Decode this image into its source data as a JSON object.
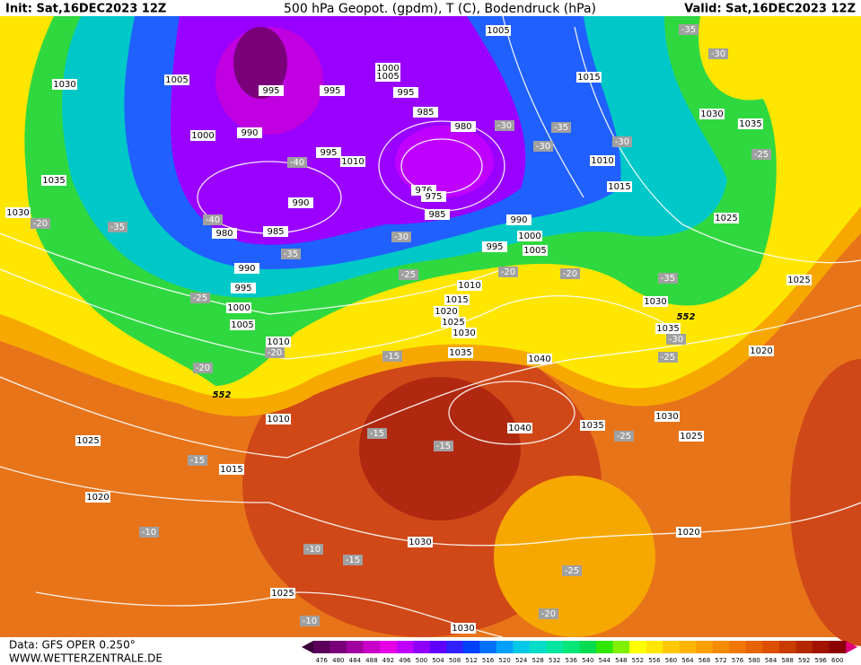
{
  "header": {
    "init": "Init: Sat,16DEC2023 12Z",
    "title": "500 hPa Geopot. (gpdm), T (C), Bodendruck (hPa)",
    "valid": "Valid: Sat,16DEC2023 12Z"
  },
  "footer": {
    "source": "Data: GFS OPER 0.250°",
    "site": "WWW.WETTERZENTRALE.DE"
  },
  "colorbar": {
    "values": [
      476,
      480,
      484,
      488,
      492,
      496,
      500,
      504,
      508,
      512,
      516,
      520,
      524,
      528,
      532,
      536,
      540,
      544,
      548,
      552,
      556,
      560,
      564,
      568,
      572,
      576,
      580,
      584,
      588,
      592,
      596,
      600
    ],
    "colors": [
      "#5a005a",
      "#7a007a",
      "#a000a0",
      "#c800c8",
      "#e600e6",
      "#c000ff",
      "#9000ff",
      "#6000ff",
      "#3020ff",
      "#0040ff",
      "#0070ff",
      "#00a0ff",
      "#00c8e6",
      "#00dcc8",
      "#00e6a0",
      "#00e678",
      "#00dc50",
      "#30e600",
      "#80f000",
      "#ffff00",
      "#ffe600",
      "#ffc800",
      "#ffb400",
      "#ffa000",
      "#f58c00",
      "#f07800",
      "#e66400",
      "#dc5000",
      "#c83c00",
      "#b42800",
      "#a01400",
      "#8c0000"
    ]
  },
  "isobar_labels": [
    1005,
    1030,
    1005,
    995,
    995,
    1000,
    1005,
    995,
    985,
    980,
    1000,
    990,
    995,
    1010,
    1035,
    976,
    975,
    990,
    985,
    1030,
    980,
    985,
    990,
    995,
    1000,
    1005,
    990,
    995,
    1010,
    1015,
    1020,
    1025,
    1030,
    1000,
    1005,
    1010,
    1035,
    1040,
    1015,
    1030,
    1035,
    1010,
    1015,
    1025,
    1030,
    1035,
    1025,
    1020,
    1030,
    1035,
    1025,
    1040,
    1010,
    1025,
    1015,
    1020,
    1030,
    1020,
    1025,
    1030
  ],
  "geopot_labels": [
    552,
    552
  ],
  "temperature_labels": [
    -35,
    -30,
    -25,
    -30,
    -35,
    -30,
    -30,
    -40,
    -40,
    -35,
    -20,
    -30,
    -35,
    -25,
    -20,
    -20,
    -35,
    -25,
    -30,
    -20,
    -15,
    -25,
    -20,
    -15,
    -15,
    -25,
    -15,
    -10,
    -10,
    -15,
    -25,
    -20,
    -10
  ]
}
